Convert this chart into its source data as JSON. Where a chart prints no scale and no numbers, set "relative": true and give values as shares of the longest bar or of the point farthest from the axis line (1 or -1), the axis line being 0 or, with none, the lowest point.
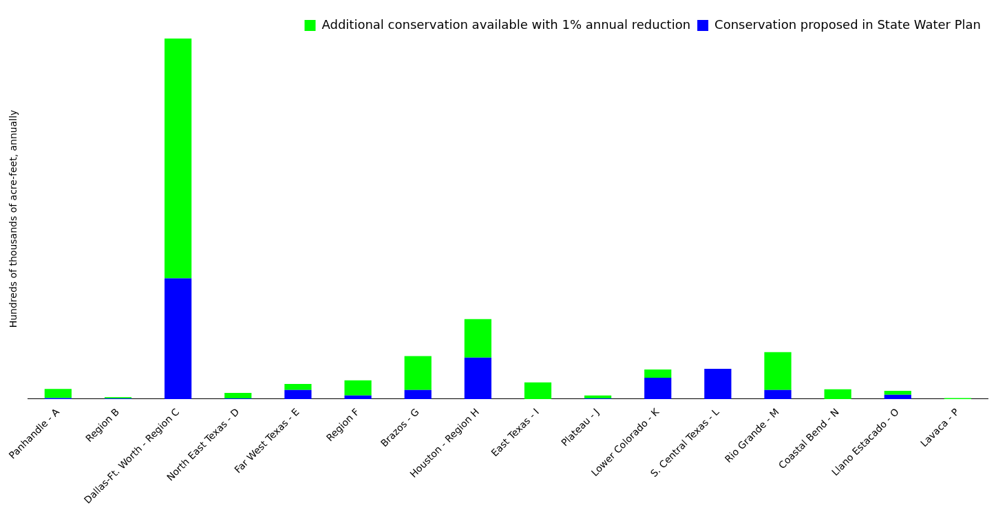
{
  "chart_data": {
    "type": "bar",
    "relative": true,
    "stacked": true,
    "ylabel": "Hundreds of thousands of acre-feet, annually",
    "legend": "top right",
    "categories": [
      "Panhandle - A",
      "Region B",
      "Dallas-Ft. Worth - Region C",
      "North East Texas - D",
      "Far West Texas - E",
      "Region F",
      "Brazos - G",
      "Houston - Region H",
      "East Texas - I",
      "Plateau - J",
      "Lower Colorado - K",
      "S. Central Texas - L",
      "Rio Grande - M",
      "Coastal Bend - N",
      "Llano Estacado - O",
      "Lavaca - P"
    ],
    "series": [
      {
        "name": "Conservation proposed in State Water Plan",
        "color": "#0000ff",
        "values": [
          0.003,
          0.002,
          0.335,
          0.002,
          0.025,
          0.01,
          0.025,
          0.115,
          0,
          0.002,
          0.059,
          0.084,
          0.025,
          0,
          0.012,
          0
        ]
      },
      {
        "name": "Additional conservation available with 1% annual reduction",
        "color": "#00ff00",
        "values": [
          0.025,
          0.003,
          0.665,
          0.015,
          0.017,
          0.042,
          0.094,
          0.107,
          0.046,
          0.008,
          0.023,
          0,
          0.105,
          0.027,
          0.011,
          0.003
        ]
      }
    ]
  }
}
